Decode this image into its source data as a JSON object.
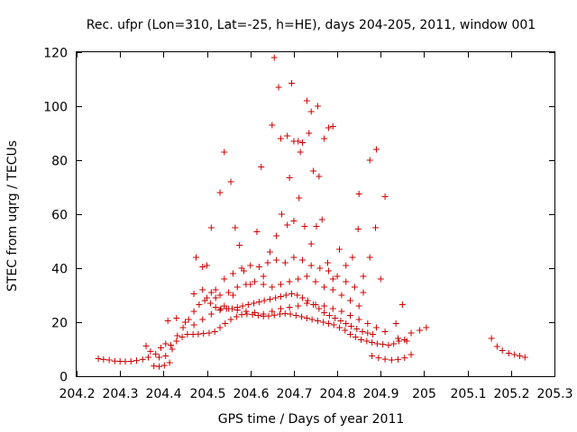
{
  "chart_data": {
    "type": "scatter",
    "title": "Rec. ufpr (Lon=310, Lat=-25, h=HE), days 204-205, 2011, window 001",
    "xlabel": "GPS time / Days of year 2011",
    "ylabel": "STEC from uqrg / TECUs",
    "xlim": [
      204.2,
      205.3
    ],
    "ylim": [
      0,
      120
    ],
    "xticks": [
      "204.2",
      "204.3",
      "204.4",
      "204.5",
      "204.6",
      "204.7",
      "204.8",
      "204.9",
      "205",
      "205.1",
      "205.2",
      "205.3"
    ],
    "yticks": [
      "0",
      "20",
      "40",
      "60",
      "80",
      "100",
      "120"
    ],
    "marker": "+",
    "color": "#cc0000",
    "grid": false,
    "series": [
      {
        "name": "STEC",
        "points": [
          [
            204.25,
            6.5
          ],
          [
            204.262,
            6.2
          ],
          [
            204.275,
            6.0
          ],
          [
            204.288,
            5.6
          ],
          [
            204.3,
            5.5
          ],
          [
            204.312,
            5.4
          ],
          [
            204.325,
            5.5
          ],
          [
            204.338,
            5.8
          ],
          [
            204.352,
            6.2
          ],
          [
            204.365,
            7.0
          ],
          [
            204.378,
            3.8
          ],
          [
            204.39,
            3.6
          ],
          [
            204.402,
            4.0
          ],
          [
            204.414,
            5.0
          ],
          [
            204.36,
            11.2
          ],
          [
            204.37,
            9.2
          ],
          [
            204.382,
            8.2
          ],
          [
            204.394,
            10.5
          ],
          [
            204.405,
            12.0
          ],
          [
            204.417,
            11.5
          ],
          [
            204.43,
            13.0
          ],
          [
            204.443,
            14.5
          ],
          [
            204.455,
            15.5
          ],
          [
            204.468,
            15.5
          ],
          [
            204.48,
            15.6
          ],
          [
            204.492,
            15.8
          ],
          [
            204.505,
            16.0
          ],
          [
            204.518,
            16.5
          ],
          [
            204.53,
            18.0
          ],
          [
            204.542,
            19.5
          ],
          [
            204.555,
            21.0
          ],
          [
            204.568,
            22.0
          ],
          [
            204.58,
            22.8
          ],
          [
            204.592,
            23.0
          ],
          [
            204.605,
            22.8
          ],
          [
            204.618,
            22.5
          ],
          [
            204.63,
            22.2
          ],
          [
            204.642,
            22.3
          ],
          [
            204.655,
            22.6
          ],
          [
            204.668,
            23.0
          ],
          [
            204.68,
            23.2
          ],
          [
            204.692,
            23.0
          ],
          [
            204.705,
            22.5
          ],
          [
            204.718,
            22.0
          ],
          [
            204.73,
            21.5
          ],
          [
            204.742,
            21.0
          ],
          [
            204.755,
            20.5
          ],
          [
            204.768,
            20.0
          ],
          [
            204.78,
            19.5
          ],
          [
            204.792,
            19.0
          ],
          [
            204.805,
            18.0
          ],
          [
            204.818,
            17.0
          ],
          [
            204.83,
            15.5
          ],
          [
            204.842,
            14.5
          ],
          [
            204.855,
            13.5
          ],
          [
            204.868,
            13.0
          ],
          [
            204.88,
            12.5
          ],
          [
            204.892,
            12.0
          ],
          [
            204.905,
            11.8
          ],
          [
            204.918,
            11.5
          ],
          [
            204.93,
            12.0
          ],
          [
            204.942,
            13.0
          ],
          [
            204.955,
            13.5
          ],
          [
            204.88,
            7.5
          ],
          [
            204.895,
            6.8
          ],
          [
            204.91,
            6.3
          ],
          [
            204.925,
            6.0
          ],
          [
            204.94,
            6.2
          ],
          [
            204.955,
            6.8
          ],
          [
            204.97,
            8.0
          ],
          [
            204.39,
            7.0
          ],
          [
            204.405,
            7.5
          ],
          [
            204.42,
            10.0
          ],
          [
            204.432,
            15.0
          ],
          [
            204.445,
            18.0
          ],
          [
            204.458,
            21.0
          ],
          [
            204.47,
            24.0
          ],
          [
            204.482,
            26.5
          ],
          [
            204.495,
            28.0
          ],
          [
            204.508,
            27.0
          ],
          [
            204.52,
            25.5
          ],
          [
            204.532,
            25.0
          ],
          [
            204.545,
            25.0
          ],
          [
            204.558,
            25.0
          ],
          [
            204.57,
            25.5
          ],
          [
            204.582,
            26.0
          ],
          [
            204.595,
            26.5
          ],
          [
            204.608,
            27.0
          ],
          [
            204.62,
            27.5
          ],
          [
            204.632,
            28.0
          ],
          [
            204.645,
            28.5
          ],
          [
            204.658,
            29.0
          ],
          [
            204.67,
            29.5
          ],
          [
            204.682,
            30.0
          ],
          [
            204.695,
            30.5
          ],
          [
            204.708,
            30.0
          ],
          [
            204.72,
            29.0
          ],
          [
            204.732,
            28.0
          ],
          [
            204.745,
            26.5
          ],
          [
            204.758,
            25.0
          ],
          [
            204.77,
            23.5
          ],
          [
            204.782,
            22.5
          ],
          [
            204.795,
            21.5
          ],
          [
            204.808,
            20.5
          ],
          [
            204.82,
            19.5
          ],
          [
            204.832,
            18.5
          ],
          [
            204.845,
            17.5
          ],
          [
            204.858,
            16.5
          ],
          [
            204.87,
            16.0
          ],
          [
            204.882,
            15.5
          ],
          [
            204.41,
            20.5
          ],
          [
            204.43,
            21.5
          ],
          [
            204.45,
            20.0
          ],
          [
            204.47,
            19.0
          ],
          [
            204.49,
            21.0
          ],
          [
            204.51,
            23.0
          ],
          [
            204.53,
            24.5
          ],
          [
            204.55,
            25.0
          ],
          [
            204.57,
            24.5
          ],
          [
            204.59,
            24.0
          ],
          [
            204.61,
            23.5
          ],
          [
            204.63,
            23.0
          ],
          [
            204.65,
            24.0
          ],
          [
            204.67,
            25.0
          ],
          [
            204.69,
            25.5
          ],
          [
            204.71,
            26.0
          ],
          [
            204.73,
            27.0
          ],
          [
            204.75,
            26.5
          ],
          [
            204.77,
            26.0
          ],
          [
            204.79,
            25.0
          ],
          [
            204.81,
            24.0
          ],
          [
            204.83,
            22.5
          ],
          [
            204.85,
            21.0
          ],
          [
            204.87,
            19.5
          ],
          [
            204.89,
            18.0
          ],
          [
            204.91,
            16.5
          ],
          [
            204.47,
            30.5
          ],
          [
            204.49,
            32.0
          ],
          [
            204.51,
            31.0
          ],
          [
            204.53,
            30.0
          ],
          [
            204.55,
            31.0
          ],
          [
            204.57,
            33.0
          ],
          [
            204.59,
            34.0
          ],
          [
            204.61,
            35.0
          ],
          [
            204.63,
            34.0
          ],
          [
            204.65,
            33.0
          ],
          [
            204.67,
            34.0
          ],
          [
            204.69,
            35.0
          ],
          [
            204.71,
            36.0
          ],
          [
            204.73,
            37.0
          ],
          [
            204.75,
            35.0
          ],
          [
            204.77,
            33.0
          ],
          [
            204.79,
            32.0
          ],
          [
            204.81,
            30.0
          ],
          [
            204.83,
            28.0
          ],
          [
            204.85,
            26.0
          ],
          [
            204.5,
            29.0
          ],
          [
            204.52,
            32.0
          ],
          [
            204.54,
            36.0
          ],
          [
            204.56,
            38.0
          ],
          [
            204.58,
            40.0
          ],
          [
            204.6,
            41.0
          ],
          [
            204.62,
            40.5
          ],
          [
            204.64,
            42.0
          ],
          [
            204.66,
            43.0
          ],
          [
            204.68,
            42.0
          ],
          [
            204.7,
            44.0
          ],
          [
            204.72,
            43.0
          ],
          [
            204.74,
            41.0
          ],
          [
            204.76,
            40.0
          ],
          [
            204.78,
            39.0
          ],
          [
            204.8,
            37.0
          ],
          [
            204.82,
            35.0
          ],
          [
            204.84,
            33.0
          ],
          [
            204.86,
            31.0
          ],
          [
            204.475,
            44.0
          ],
          [
            204.49,
            40.5
          ],
          [
            204.5,
            41.0
          ],
          [
            204.52,
            29.0
          ],
          [
            204.54,
            26.0
          ],
          [
            204.56,
            30.0
          ],
          [
            204.575,
            48.5
          ],
          [
            204.585,
            39.0
          ],
          [
            204.6,
            34.0
          ],
          [
            204.615,
            53.5
          ],
          [
            204.63,
            37.0
          ],
          [
            204.645,
            46.0
          ],
          [
            204.66,
            52.0
          ],
          [
            204.672,
            60.0
          ],
          [
            204.685,
            56.0
          ],
          [
            204.7,
            57.5
          ],
          [
            204.712,
            66.0
          ],
          [
            204.725,
            55.5
          ],
          [
            204.74,
            49.0
          ],
          [
            204.752,
            55.5
          ],
          [
            204.765,
            58.0
          ],
          [
            204.778,
            42.0
          ],
          [
            204.79,
            36.0
          ],
          [
            204.805,
            47.0
          ],
          [
            204.82,
            41.0
          ],
          [
            204.835,
            44.0
          ],
          [
            204.848,
            54.5
          ],
          [
            204.86,
            37.0
          ],
          [
            204.875,
            44.0
          ],
          [
            204.888,
            55.0
          ],
          [
            204.9,
            36.0
          ],
          [
            204.51,
            55.0
          ],
          [
            204.53,
            68.0
          ],
          [
            204.54,
            83.0
          ],
          [
            204.555,
            72.0
          ],
          [
            204.565,
            55.0
          ],
          [
            204.625,
            77.5
          ],
          [
            204.65,
            93.0
          ],
          [
            204.655,
            118.0
          ],
          [
            204.665,
            107.0
          ],
          [
            204.67,
            88.0
          ],
          [
            204.685,
            89.0
          ],
          [
            204.69,
            73.5
          ],
          [
            204.695,
            108.5
          ],
          [
            204.7,
            87.0
          ],
          [
            204.71,
            87.0
          ],
          [
            204.715,
            83.0
          ],
          [
            204.72,
            86.5
          ],
          [
            204.73,
            102.0
          ],
          [
            204.735,
            90.0
          ],
          [
            204.74,
            98.0
          ],
          [
            204.745,
            76.0
          ],
          [
            204.755,
            100.0
          ],
          [
            204.758,
            74.0
          ],
          [
            204.77,
            88.0
          ],
          [
            204.78,
            92.0
          ],
          [
            204.79,
            92.5
          ],
          [
            204.85,
            67.5
          ],
          [
            204.875,
            80.0
          ],
          [
            204.89,
            84.0
          ],
          [
            204.91,
            66.5
          ],
          [
            204.935,
            19.5
          ],
          [
            204.95,
            26.5
          ],
          [
            204.94,
            14.0
          ],
          [
            204.96,
            13.0
          ],
          [
            204.97,
            16.0
          ],
          [
            204.99,
            17.0
          ],
          [
            205.005,
            18.0
          ],
          [
            205.155,
            14.0
          ],
          [
            205.168,
            11.0
          ],
          [
            205.18,
            9.5
          ],
          [
            205.195,
            8.5
          ],
          [
            205.208,
            8.0
          ],
          [
            205.22,
            7.5
          ],
          [
            205.232,
            7.0
          ]
        ]
      }
    ]
  }
}
